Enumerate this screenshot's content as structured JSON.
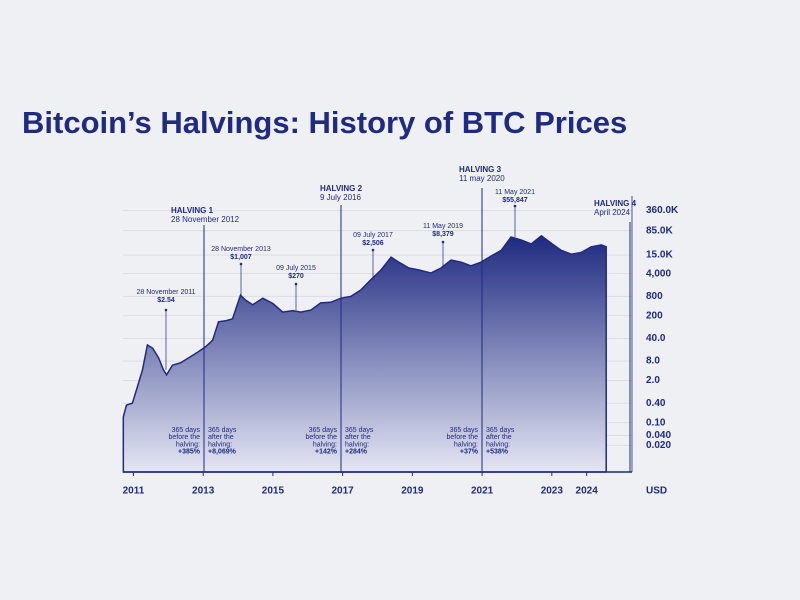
{
  "chart_data": {
    "type": "area",
    "title": "Bitcoin’s Halvings: History of BTC Prices",
    "ylabel": "USD",
    "log_y": true,
    "grid": true,
    "color": "#1f2a80",
    "x": [
      2010.71,
      2010.8,
      2010.97,
      2011.11,
      2011.26,
      2011.4,
      2011.55,
      2011.72,
      2011.86,
      2011.95,
      2012.12,
      2012.35,
      2012.64,
      2012.84,
      2013.07,
      2013.27,
      2013.44,
      2013.64,
      2013.84,
      2014.07,
      2014.22,
      2014.42,
      2014.71,
      2015.0,
      2015.28,
      2015.57,
      2015.8,
      2016.09,
      2016.37,
      2016.66,
      2016.95,
      2017.24,
      2017.52,
      2017.81,
      2018.1,
      2018.39,
      2018.61,
      2018.9,
      2019.19,
      2019.53,
      2019.82,
      2020.11,
      2020.4,
      2020.68,
      2020.97,
      2021.26,
      2021.55,
      2021.83,
      2022.12,
      2022.41,
      2022.7,
      2022.98,
      2023.27,
      2023.56,
      2023.84,
      2024.13,
      2024.42,
      2024.56
    ],
    "values": [
      0.15,
      0.35,
      0.4,
      1.26,
      4.3,
      25,
      20,
      10,
      4.3,
      3,
      6,
      7,
      11,
      15,
      22,
      35,
      130,
      140,
      160,
      870,
      600,
      440,
      700,
      480,
      260,
      290,
      260,
      300,
      500,
      520,
      700,
      800,
      1250,
      2600,
      5200,
      13000,
      9000,
      6000,
      5200,
      4200,
      6000,
      10500,
      9000,
      7000,
      9000,
      14000,
      21000,
      54000,
      44000,
      33000,
      59000,
      35000,
      21000,
      16000,
      18000,
      27000,
      31000,
      27000
    ],
    "xlim": [
      2010.7,
      2025.3
    ],
    "xticks": [
      2011,
      2013,
      2015,
      2017,
      2019,
      2021,
      2023,
      2024
    ],
    "ylim": [
      0.003,
      1000000
    ],
    "yticks": [
      {
        "value": 360000,
        "label": "360.0K"
      },
      {
        "value": 85000,
        "label": "85.0K"
      },
      {
        "value": 15000,
        "label": "15.0K"
      },
      {
        "value": 4000,
        "label": "4,000"
      },
      800,
      200,
      {
        "value": 40,
        "label": "40.0"
      },
      {
        "value": 8,
        "label": "8.0"
      },
      {
        "value": 2,
        "label": "2.0"
      },
      {
        "value": 0.4,
        "label": "0.40"
      },
      {
        "value": 0.1,
        "label": "0.10"
      },
      {
        "value": 0.02,
        "label": "0.020"
      },
      {
        "value": 0.04,
        "label": "0.040"
      }
    ],
    "peaks": [
      {
        "date": "28 November 2011",
        "price": "$2.54"
      },
      {
        "date": "28 November 2013",
        "price": "$1,007"
      },
      {
        "date": "09 July 2015",
        "price": "$270"
      },
      {
        "date": "09 July 2017",
        "price": "$2,506"
      },
      {
        "date": "11 May 2019",
        "price": "$8,379"
      },
      {
        "date": "11 May 2021",
        "price": "$55,847"
      }
    ],
    "halvings": [
      {
        "label": "HALVING 1",
        "date": "28 November 2012",
        "before": [
          "365 days",
          "before the",
          "halving:",
          "+385%"
        ],
        "after": [
          "365 days",
          "after the",
          "halving:",
          "+8,069%"
        ]
      },
      {
        "label": "HALVING 2",
        "date": "9 July 2016",
        "before": [
          "365 days",
          "before the",
          "halving:",
          "+142%"
        ],
        "after": [
          "365 days",
          "after the",
          "halving:",
          "+284%"
        ]
      },
      {
        "label": "HALVING 3",
        "date": "11 may 2020",
        "before": [
          "365 days",
          "before the",
          "halving:",
          "+37%"
        ],
        "after": [
          "365 days",
          "after the",
          "halving:",
          "+538%"
        ]
      },
      {
        "label": "HALVING 4",
        "date": "April 2024"
      }
    ]
  }
}
